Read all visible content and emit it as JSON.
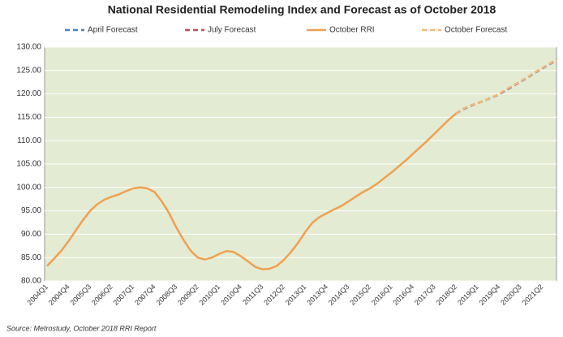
{
  "chart_data": {
    "type": "line",
    "title": "National Residential Remodeling Index and Forecast as of October 2018",
    "source": "Source:  Metrostudy, October 2018 RRI Report",
    "categories": [
      "2004Q1",
      null,
      null,
      "2004Q4",
      null,
      null,
      "2005Q3",
      null,
      null,
      "2006Q2",
      null,
      null,
      "2007Q1",
      null,
      null,
      "2007Q4",
      null,
      null,
      "2008Q3",
      null,
      null,
      "2009Q2",
      null,
      null,
      "2010Q1",
      null,
      null,
      "2010Q4",
      null,
      null,
      "2011Q3",
      null,
      null,
      "2012Q2",
      null,
      null,
      "2013Q1",
      null,
      null,
      "2013Q4",
      null,
      null,
      "2014Q3",
      null,
      null,
      "2015Q2",
      null,
      null,
      "2016Q1",
      null,
      null,
      "2016Q4",
      null,
      null,
      "2017Q3",
      null,
      null,
      "2018Q2",
      null,
      null,
      "2019Q1",
      null,
      null,
      "2019Q4",
      null,
      null,
      "2020Q3",
      null,
      null,
      "2021Q2",
      null,
      null
    ],
    "series": [
      {
        "name": "April Forecast",
        "color": "#4f81bd",
        "dashed": true,
        "values": [
          null,
          null,
          null,
          null,
          null,
          null,
          null,
          null,
          null,
          null,
          null,
          null,
          null,
          null,
          null,
          null,
          null,
          null,
          null,
          null,
          null,
          null,
          null,
          null,
          null,
          null,
          null,
          null,
          null,
          null,
          null,
          null,
          null,
          null,
          null,
          null,
          null,
          null,
          null,
          null,
          null,
          null,
          null,
          null,
          null,
          null,
          null,
          null,
          null,
          null,
          null,
          null,
          null,
          null,
          null,
          null,
          null,
          115.8,
          116.7,
          117.4,
          118,
          118.6,
          119.2,
          119.9,
          120.8,
          121.7,
          122.6,
          123.5,
          124.5,
          125.4,
          126.3,
          127.2
        ]
      },
      {
        "name": "July Forecast",
        "color": "#c0504d",
        "dashed": true,
        "values": [
          null,
          null,
          null,
          null,
          null,
          null,
          null,
          null,
          null,
          null,
          null,
          null,
          null,
          null,
          null,
          null,
          null,
          null,
          null,
          null,
          null,
          null,
          null,
          null,
          null,
          null,
          null,
          null,
          null,
          null,
          null,
          null,
          null,
          null,
          null,
          null,
          null,
          null,
          null,
          null,
          null,
          null,
          null,
          null,
          null,
          null,
          null,
          null,
          null,
          null,
          null,
          null,
          null,
          null,
          null,
          null,
          null,
          115.8,
          116.8,
          117.5,
          118,
          118.6,
          119.2,
          120,
          120.9,
          121.8,
          122.7,
          123.6,
          124.6,
          125.5,
          126.4,
          127.3
        ]
      },
      {
        "name": "October RRI",
        "color": "#f0a050",
        "dashed": false,
        "values": [
          83.2,
          84.8,
          86.5,
          88.5,
          90.8,
          93,
          95,
          96.4,
          97.4,
          98,
          98.5,
          99.2,
          99.8,
          100,
          99.8,
          99,
          97,
          94.5,
          91.5,
          88.8,
          86.5,
          85,
          84.6,
          85,
          85.8,
          86.4,
          86.2,
          85.3,
          84.2,
          83,
          82.5,
          82.6,
          83.2,
          84.5,
          86.2,
          88.2,
          90.5,
          92.5,
          93.7,
          94.5,
          95.3,
          96,
          97,
          98,
          99,
          99.8,
          100.8,
          102,
          103.2,
          104.5,
          105.8,
          107.2,
          108.6,
          110,
          111.5,
          113,
          114.5,
          115.8,
          null,
          null,
          null,
          null,
          null,
          null,
          null,
          null,
          null,
          null,
          null,
          null,
          null,
          null
        ]
      },
      {
        "name": "October Forecast",
        "color": "#f5b878",
        "dashed": true,
        "values": [
          null,
          null,
          null,
          null,
          null,
          null,
          null,
          null,
          null,
          null,
          null,
          null,
          null,
          null,
          null,
          null,
          null,
          null,
          null,
          null,
          null,
          null,
          null,
          null,
          null,
          null,
          null,
          null,
          null,
          null,
          null,
          null,
          null,
          null,
          null,
          null,
          null,
          null,
          null,
          null,
          null,
          null,
          null,
          null,
          null,
          null,
          null,
          null,
          null,
          null,
          null,
          null,
          null,
          null,
          null,
          null,
          null,
          115.8,
          116.8,
          117.5,
          118,
          118.6,
          119.2,
          120,
          121,
          121.8,
          122.7,
          123.6,
          124.6,
          125.5,
          126.4,
          127.3
        ]
      }
    ],
    "ylim": [
      80,
      130
    ],
    "yticks": [
      {
        "value": 80,
        "label": "80.00"
      },
      {
        "value": 85,
        "label": "85.00"
      },
      {
        "value": 90,
        "label": "90.00"
      },
      {
        "value": 95,
        "label": "95.00"
      },
      {
        "value": 100,
        "label": "100.00"
      },
      {
        "value": 105,
        "label": "105.00"
      },
      {
        "value": 110,
        "label": "110.00"
      },
      {
        "value": 115,
        "label": "115.00"
      },
      {
        "value": 120,
        "label": "120.00"
      },
      {
        "value": 125,
        "label": "125.00"
      },
      {
        "value": 130,
        "label": "130.00"
      }
    ],
    "grid": true,
    "legend": "top"
  }
}
